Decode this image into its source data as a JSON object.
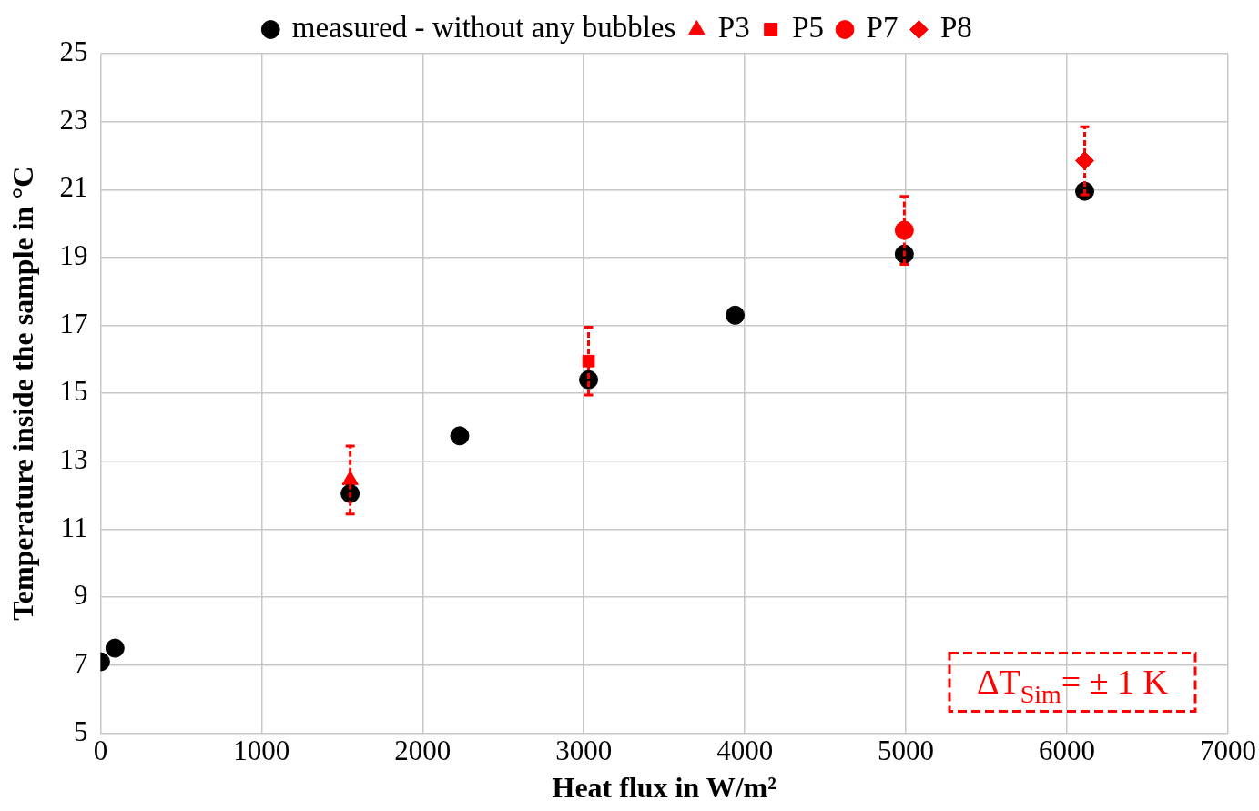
{
  "chart_data": {
    "type": "scatter",
    "xlabel": "Heat flux in W/m²",
    "ylabel": "Temperature inside the sample in °C",
    "xlim": [
      0,
      7000
    ],
    "xticks": [
      0,
      1000,
      2000,
      3000,
      4000,
      5000,
      6000,
      7000
    ],
    "ylim": [
      5,
      25
    ],
    "yticks": [
      5,
      7,
      9,
      11,
      13,
      15,
      17,
      19,
      21,
      23,
      25
    ],
    "grid": true,
    "legend": "top",
    "annotations": [
      "ΔT$_{Sim}$= ± 1 K"
    ],
    "series": [
      {
        "name": "measured - without any bubbles",
        "color": "#000000",
        "marker": "circle",
        "x": [
          0,
          90,
          1550,
          2230,
          3030,
          3940,
          4990,
          6110
        ],
        "values": [
          7.1,
          7.5,
          12.05,
          13.75,
          15.4,
          17.3,
          19.1,
          20.95
        ]
      },
      {
        "name": "P3",
        "color": "#ff0000",
        "marker": "triangle",
        "x": [
          1550
        ],
        "values": [
          12.45
        ],
        "errors": [
          1
        ]
      },
      {
        "name": "P5",
        "color": "#ff0000",
        "marker": "square",
        "x": [
          3030
        ],
        "values": [
          15.95
        ],
        "errors": [
          1
        ]
      },
      {
        "name": "P7",
        "color": "#ff0000",
        "marker": "circle",
        "x": [
          4990
        ],
        "values": [
          19.8
        ],
        "errors": [
          1
        ]
      },
      {
        "name": "P8",
        "color": "#ff0000",
        "marker": "diamond",
        "x": [
          6110
        ],
        "values": [
          21.85
        ],
        "errors": [
          1
        ]
      }
    ]
  }
}
